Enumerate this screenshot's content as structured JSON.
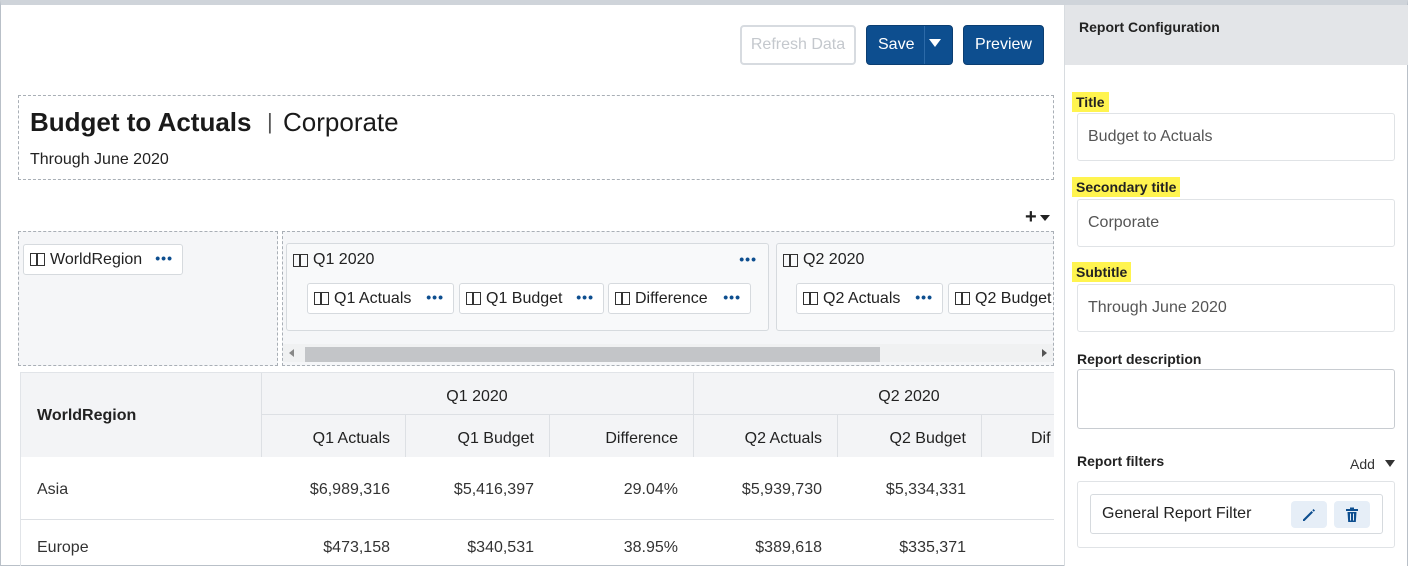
{
  "toolbar": {
    "refresh_label": "Refresh Data",
    "save_label": "Save",
    "preview_label": "Preview"
  },
  "report": {
    "title": "Budget to Actuals",
    "separator": "|",
    "secondary_title": "Corporate",
    "subtitle": "Through June 2020"
  },
  "layout": {
    "add_symbol": "+",
    "row_field": "WorldRegion",
    "column_groups": [
      {
        "label": "Q1 2020",
        "fields": [
          "Q1 Actuals",
          "Q1 Budget",
          "Difference"
        ]
      },
      {
        "label": "Q2 2020",
        "fields": [
          "Q2 Actuals",
          "Q2 Budget"
        ]
      }
    ]
  },
  "table": {
    "row_header": "WorldRegion",
    "groups": [
      "Q1 2020",
      "Q2 2020"
    ],
    "columns": [
      "Q1 Actuals",
      "Q1 Budget",
      "Difference",
      "Q2 Actuals",
      "Q2 Budget",
      "Dif"
    ],
    "rows": [
      {
        "region": "Asia",
        "values": [
          "$6,989,316",
          "$5,416,397",
          "29.04%",
          "$5,939,730",
          "$5,334,331"
        ]
      },
      {
        "region": "Europe",
        "values": [
          "$473,158",
          "$340,531",
          "38.95%",
          "$389,618",
          "$335,371"
        ]
      }
    ]
  },
  "panel": {
    "heading": "Report Configuration",
    "title_label": "Title",
    "title_value": "Budget to Actuals",
    "secondary_label": "Secondary title",
    "secondary_value": "Corporate",
    "subtitle_label": "Subtitle",
    "subtitle_value": "Through June 2020",
    "description_label": "Report description",
    "filters_label": "Report filters",
    "add_label": "Add",
    "filter_name": "General Report Filter"
  },
  "colors": {
    "primary": "#0d4e8f",
    "highlight": "#fff44f"
  }
}
